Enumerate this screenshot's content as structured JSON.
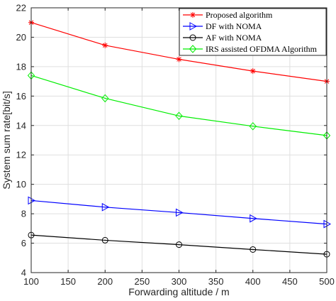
{
  "chart_data": {
    "type": "line",
    "title": "",
    "xlabel": "Forwarding altitude / m",
    "ylabel": "System sum rate[bit/s]",
    "xlim": [
      100,
      500
    ],
    "ylim": [
      4,
      22
    ],
    "xticks": [
      100,
      150,
      200,
      250,
      300,
      350,
      400,
      450,
      500
    ],
    "yticks": [
      4,
      6,
      8,
      10,
      12,
      14,
      16,
      18,
      20,
      22
    ],
    "grid": true,
    "legend_position": "top-right",
    "x": [
      100,
      200,
      300,
      400,
      500
    ],
    "series": [
      {
        "name": "Proposed algorithm",
        "color": "#ff0000",
        "marker": "asterisk",
        "values": [
          21.0,
          19.45,
          18.5,
          17.7,
          17.0
        ]
      },
      {
        "name": "DF with NOMA",
        "color": "#0000ff",
        "marker": "triangle-right",
        "values": [
          8.9,
          8.45,
          8.08,
          7.68,
          7.3
        ]
      },
      {
        "name": "AF with NOMA",
        "color": "#000000",
        "marker": "circle",
        "values": [
          6.55,
          6.2,
          5.9,
          5.57,
          5.25
        ]
      },
      {
        "name": "IRS assisted OFDMA Algorithm",
        "color": "#00ee00",
        "marker": "diamond",
        "values": [
          17.4,
          15.85,
          14.65,
          13.95,
          13.32
        ]
      }
    ]
  }
}
